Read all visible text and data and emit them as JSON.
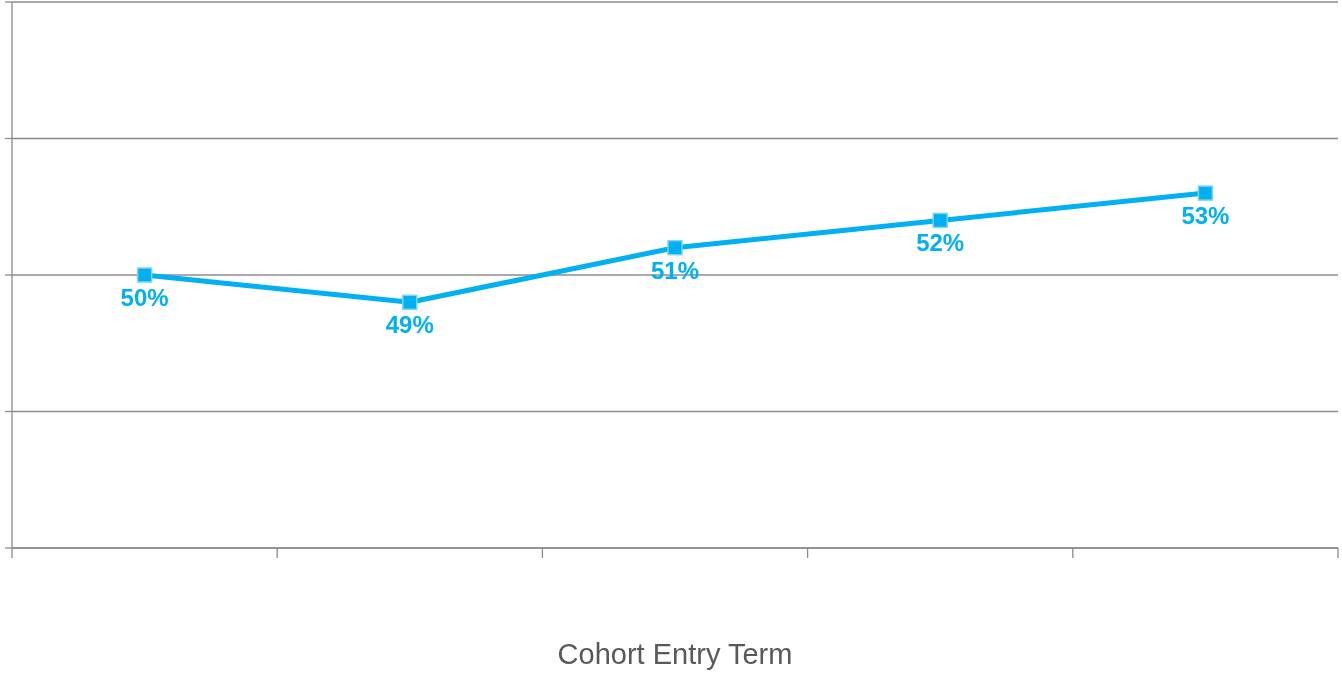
{
  "chart_data": {
    "type": "line",
    "xlabel": "Cohort Entry Term",
    "categories": [
      null,
      null,
      null,
      null,
      null
    ],
    "series": [
      {
        "color": "#00b0f0",
        "values": [
          50,
          49,
          51,
          52,
          53
        ],
        "value_labels": [
          "50%",
          "49%",
          "51%",
          "52%",
          "53%"
        ]
      }
    ],
    "ylim": [
      40,
      60
    ],
    "yticks": [
      {
        "value": 40,
        "label": null
      },
      {
        "value": 45,
        "label": null
      },
      {
        "value": 50,
        "label": null
      },
      {
        "value": 55,
        "label": null
      },
      {
        "value": 60,
        "label": null
      }
    ],
    "grid": "y",
    "marker": "square",
    "line_style": "solid"
  }
}
